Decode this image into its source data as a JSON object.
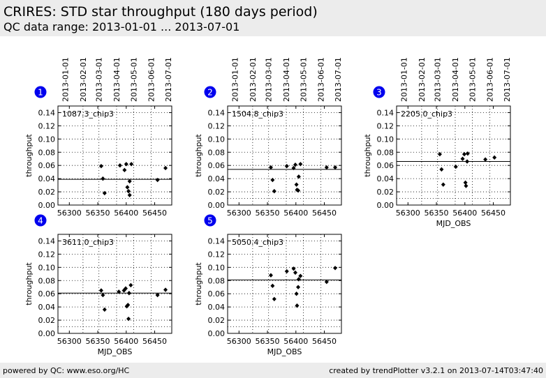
{
  "header": {
    "title": "CRIRES: STD star throughput (180 days period)",
    "subtitle": "QC data range: 2013-01-01 ... 2013-07-01"
  },
  "footer": {
    "left": "powered by QC: www.eso.org/HC",
    "right": "created by trendPlotter v3.2.1 on 2013-07-14T03:47:40"
  },
  "colors": {
    "badge": "#0000ee",
    "points": "#000000",
    "grid": "#000000"
  },
  "chart_data": [
    {
      "type": "scatter",
      "index": "1",
      "label": "1087.3_chip3",
      "xlabel": "",
      "ylabel": "throughput",
      "xlim": [
        56280,
        56480
      ],
      "ylim": [
        0,
        0.15
      ],
      "xticks": [
        56300,
        56350,
        56400,
        56450
      ],
      "yticks": [
        0.0,
        0.02,
        0.04,
        0.06,
        0.08,
        0.1,
        0.12,
        0.14
      ],
      "top_ticks": [
        {
          "label": "2013-01-01",
          "mjd": 56293
        },
        {
          "label": "2013-02-01",
          "mjd": 56324
        },
        {
          "label": "2013-03-01",
          "mjd": 56352
        },
        {
          "label": "2013-04-01",
          "mjd": 56383
        },
        {
          "label": "2013-05-01",
          "mjd": 56413
        },
        {
          "label": "2013-06-01",
          "mjd": 56444
        },
        {
          "label": "2013-07-01",
          "mjd": 56474
        }
      ],
      "reference_line": 0.039,
      "points": [
        [
          56356,
          0.059
        ],
        [
          56359,
          0.04
        ],
        [
          56362,
          0.018
        ],
        [
          56389,
          0.06
        ],
        [
          56397,
          0.053
        ],
        [
          56400,
          0.062
        ],
        [
          56402,
          0.027
        ],
        [
          56404,
          0.021
        ],
        [
          56406,
          0.036
        ],
        [
          56406,
          0.015
        ],
        [
          56409,
          0.062
        ],
        [
          56455,
          0.038
        ],
        [
          56469,
          0.056
        ]
      ]
    },
    {
      "type": "scatter",
      "index": "2",
      "label": "1504.8_chip3",
      "xlabel": "",
      "ylabel": "throughput",
      "xlim": [
        56280,
        56480
      ],
      "ylim": [
        0,
        0.15
      ],
      "xticks": [
        56300,
        56350,
        56400,
        56450
      ],
      "yticks": [
        0.0,
        0.02,
        0.04,
        0.06,
        0.08,
        0.1,
        0.12,
        0.14
      ],
      "top_ticks": [
        {
          "label": "2013-01-01",
          "mjd": 56293
        },
        {
          "label": "2013-02-01",
          "mjd": 56324
        },
        {
          "label": "2013-03-01",
          "mjd": 56352
        },
        {
          "label": "2013-04-01",
          "mjd": 56383
        },
        {
          "label": "2013-05-01",
          "mjd": 56413
        },
        {
          "label": "2013-06-01",
          "mjd": 56444
        },
        {
          "label": "2013-07-01",
          "mjd": 56474
        }
      ],
      "reference_line": 0.054,
      "points": [
        [
          56356,
          0.057
        ],
        [
          56359,
          0.038
        ],
        [
          56362,
          0.021
        ],
        [
          56384,
          0.059
        ],
        [
          56396,
          0.056
        ],
        [
          56399,
          0.061
        ],
        [
          56401,
          0.031
        ],
        [
          56402,
          0.023
        ],
        [
          56404,
          0.022
        ],
        [
          56405,
          0.043
        ],
        [
          56408,
          0.062
        ],
        [
          56454,
          0.057
        ],
        [
          56469,
          0.057
        ]
      ]
    },
    {
      "type": "scatter",
      "index": "3",
      "label": "2205.0_chip3",
      "xlabel": "MJD_OBS",
      "ylabel": "throughput",
      "xlim": [
        56280,
        56480
      ],
      "ylim": [
        0,
        0.15
      ],
      "xticks": [
        56300,
        56350,
        56400,
        56450
      ],
      "yticks": [
        0.0,
        0.02,
        0.04,
        0.06,
        0.08,
        0.1,
        0.12,
        0.14
      ],
      "top_ticks": [
        {
          "label": "2013-01-01",
          "mjd": 56293
        },
        {
          "label": "2013-02-01",
          "mjd": 56324
        },
        {
          "label": "2013-03-01",
          "mjd": 56352
        },
        {
          "label": "2013-04-01",
          "mjd": 56383
        },
        {
          "label": "2013-05-01",
          "mjd": 56413
        },
        {
          "label": "2013-06-01",
          "mjd": 56444
        },
        {
          "label": "2013-07-01",
          "mjd": 56474
        }
      ],
      "reference_line": 0.066,
      "points": [
        [
          56356,
          0.077
        ],
        [
          56359,
          0.054
        ],
        [
          56362,
          0.031
        ],
        [
          56384,
          0.058
        ],
        [
          56396,
          0.07
        ],
        [
          56399,
          0.077
        ],
        [
          56401,
          0.034
        ],
        [
          56402,
          0.029
        ],
        [
          56404,
          0.066
        ],
        [
          56405,
          0.078
        ],
        [
          56436,
          0.069
        ],
        [
          56452,
          0.072
        ]
      ]
    },
    {
      "type": "scatter",
      "index": "4",
      "label": "3611.0_chip3",
      "xlabel": "MJD_OBS",
      "ylabel": "throughput",
      "xlim": [
        56280,
        56480
      ],
      "ylim": [
        0,
        0.15
      ],
      "xticks": [
        56300,
        56350,
        56400,
        56450
      ],
      "yticks": [
        0.0,
        0.02,
        0.04,
        0.06,
        0.08,
        0.1,
        0.12,
        0.14
      ],
      "top_ticks": [],
      "reference_line": 0.061,
      "points": [
        [
          56356,
          0.065
        ],
        [
          56359,
          0.058
        ],
        [
          56362,
          0.036
        ],
        [
          56387,
          0.063
        ],
        [
          56396,
          0.065
        ],
        [
          56399,
          0.068
        ],
        [
          56401,
          0.041
        ],
        [
          56403,
          0.043
        ],
        [
          56404,
          0.022
        ],
        [
          56405,
          0.061
        ],
        [
          56408,
          0.073
        ],
        [
          56455,
          0.058
        ],
        [
          56469,
          0.066
        ]
      ]
    },
    {
      "type": "scatter",
      "index": "5",
      "label": "5050.4_chip3",
      "xlabel": "MJD_OBS",
      "ylabel": "throughput",
      "xlim": [
        56280,
        56480
      ],
      "ylim": [
        0,
        0.15
      ],
      "xticks": [
        56300,
        56350,
        56400,
        56450
      ],
      "yticks": [
        0.0,
        0.02,
        0.04,
        0.06,
        0.08,
        0.1,
        0.12,
        0.14
      ],
      "top_ticks": [],
      "reference_line": 0.081,
      "points": [
        [
          56356,
          0.088
        ],
        [
          56359,
          0.072
        ],
        [
          56362,
          0.052
        ],
        [
          56384,
          0.094
        ],
        [
          56396,
          0.098
        ],
        [
          56399,
          0.092
        ],
        [
          56401,
          0.06
        ],
        [
          56402,
          0.042
        ],
        [
          56404,
          0.07
        ],
        [
          56405,
          0.082
        ],
        [
          56408,
          0.087
        ],
        [
          56454,
          0.078
        ],
        [
          56469,
          0.099
        ]
      ]
    }
  ]
}
